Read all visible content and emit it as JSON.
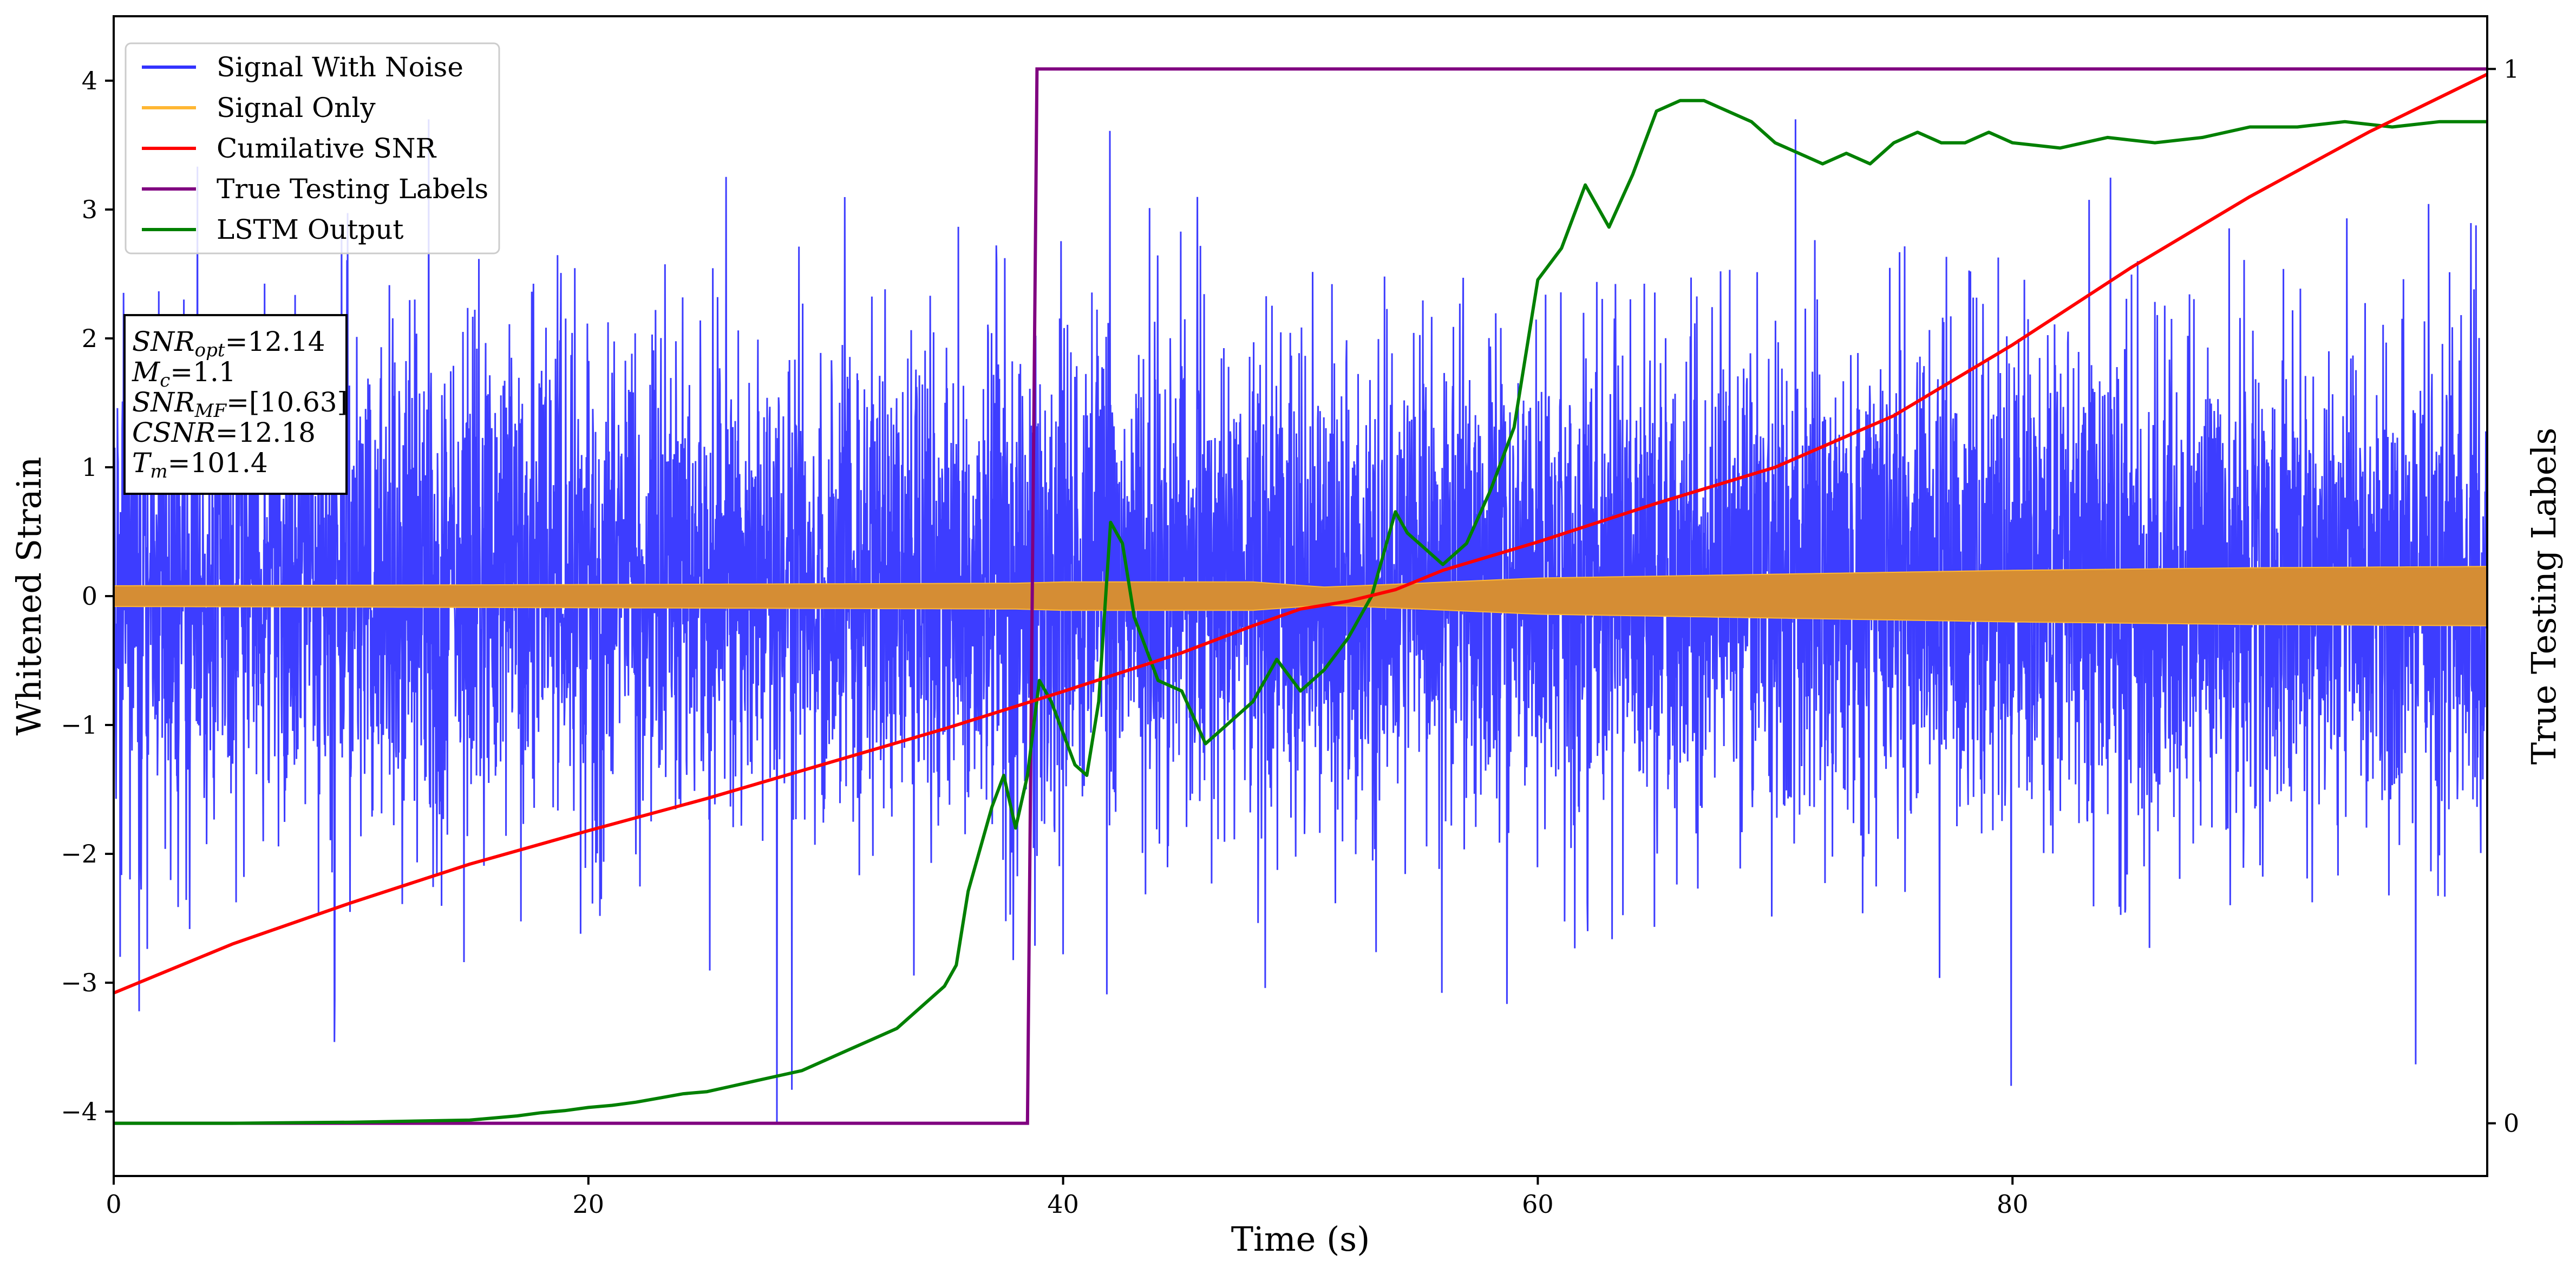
{
  "chart_data": {
    "type": "line",
    "xlabel": "Time (s)",
    "ylabel": "Whitened Strain",
    "y2label": "True Testing Labels",
    "xlim": [
      0,
      100
    ],
    "ylim": [
      -4.5,
      4.5
    ],
    "y2lim": [
      -0.05,
      1.05
    ],
    "xticks": [
      0,
      20,
      40,
      60,
      80
    ],
    "yticks": [
      -4,
      -3,
      -2,
      -1,
      0,
      1,
      2,
      3,
      4
    ],
    "y2ticks": [
      0,
      1
    ],
    "grid": false,
    "legend_position": "top-left",
    "series": [
      {
        "name": "Signal With Noise",
        "color": "#3333ff",
        "axis": "left",
        "description_values": {
          "typical_range": [
            -1.8,
            2.2
          ],
          "max": 3.7,
          "min": -4.1
        }
      },
      {
        "name": "Signal Only",
        "color": "#ffb733",
        "fill_color": "#d58d34",
        "axis": "left",
        "envelope": {
          "x": [
            0,
            20,
            38,
            40,
            48,
            51,
            55,
            60,
            70,
            80,
            90,
            100
          ],
          "amplitude": [
            0.08,
            0.09,
            0.1,
            0.11,
            0.11,
            0.07,
            0.1,
            0.14,
            0.17,
            0.2,
            0.22,
            0.23
          ]
        }
      },
      {
        "name": "Cumilative SNR",
        "color": "#ff0000",
        "axis": "left",
        "x": [
          0,
          5,
          10,
          15,
          20,
          25,
          30,
          35,
          40,
          45,
          48,
          50,
          52,
          54,
          56,
          60,
          65,
          70,
          75,
          80,
          85,
          90,
          95,
          100
        ],
        "y": [
          -3.08,
          -2.7,
          -2.38,
          -2.08,
          -1.82,
          -1.57,
          -1.3,
          -1.03,
          -0.74,
          -0.44,
          -0.23,
          -0.1,
          -0.04,
          0.05,
          0.2,
          0.42,
          0.72,
          1.0,
          1.4,
          1.95,
          2.55,
          3.1,
          3.6,
          4.05
        ]
      },
      {
        "name": "True Testing Labels",
        "color": "#800080",
        "axis": "right",
        "x": [
          0,
          38.5,
          38.9,
          100
        ],
        "y": [
          0,
          0,
          1,
          1
        ]
      },
      {
        "name": "LSTM Output",
        "color": "#008000",
        "axis": "right",
        "x": [
          0,
          5,
          10,
          15,
          17,
          18,
          19,
          20,
          21,
          22,
          23,
          24,
          25,
          26,
          27,
          28,
          29,
          30,
          31,
          32,
          33,
          34,
          35,
          35.5,
          36,
          37,
          37.5,
          38,
          38.5,
          39,
          39.5,
          40,
          40.5,
          41,
          41.5,
          42,
          42.5,
          43,
          44,
          45,
          46,
          47,
          48,
          49,
          50,
          51,
          52,
          53,
          54,
          54.5,
          55,
          55.5,
          56,
          57,
          58,
          59,
          60,
          61,
          62,
          63,
          64,
          65,
          66,
          67,
          68,
          69,
          70,
          71,
          72,
          73,
          74,
          75,
          76,
          77,
          78,
          79,
          80,
          82,
          84,
          86,
          88,
          90,
          92,
          94,
          96,
          98,
          100
        ],
        "y": [
          0.0,
          0.0,
          0.001,
          0.003,
          0.007,
          0.01,
          0.012,
          0.015,
          0.017,
          0.02,
          0.024,
          0.028,
          0.03,
          0.035,
          0.04,
          0.045,
          0.05,
          0.06,
          0.07,
          0.08,
          0.09,
          0.11,
          0.13,
          0.15,
          0.22,
          0.3,
          0.33,
          0.28,
          0.33,
          0.42,
          0.4,
          0.37,
          0.34,
          0.33,
          0.4,
          0.57,
          0.55,
          0.48,
          0.42,
          0.41,
          0.36,
          0.38,
          0.4,
          0.44,
          0.41,
          0.43,
          0.46,
          0.5,
          0.58,
          0.56,
          0.55,
          0.54,
          0.53,
          0.55,
          0.6,
          0.66,
          0.8,
          0.83,
          0.89,
          0.85,
          0.9,
          0.96,
          0.97,
          0.97,
          0.96,
          0.95,
          0.93,
          0.92,
          0.91,
          0.92,
          0.91,
          0.93,
          0.94,
          0.93,
          0.93,
          0.94,
          0.93,
          0.925,
          0.935,
          0.93,
          0.935,
          0.945,
          0.945,
          0.95,
          0.945,
          0.95,
          0.95
        ]
      }
    ]
  },
  "legend": {
    "items": [
      {
        "label": "Signal With Noise",
        "color": "#3333ff"
      },
      {
        "label": "Signal Only",
        "color": "#ffb733"
      },
      {
        "label": "Cumilative SNR",
        "color": "#ff0000"
      },
      {
        "label": "True Testing Labels",
        "color": "#800080"
      },
      {
        "label": "LSTM Output",
        "color": "#008000"
      }
    ]
  },
  "info_box": {
    "lines": [
      {
        "name": "SNR",
        "sub": "opt",
        "value": "=12.14"
      },
      {
        "name": "M",
        "sub": "c",
        "value": "=1.1"
      },
      {
        "name": "SNR",
        "sub": "MF",
        "value": "=[10.63]"
      },
      {
        "name": "CSNR",
        "sub": "",
        "value": "=12.18"
      },
      {
        "name": "T",
        "sub": "m",
        "value": "=101.4"
      }
    ]
  }
}
